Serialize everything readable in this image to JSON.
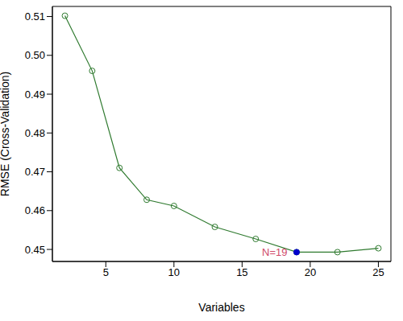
{
  "chart_data": {
    "type": "line",
    "xlabel": "Variables",
    "ylabel": "RMSE (Cross-Validation)",
    "x": [
      2,
      4,
      6,
      8,
      10,
      13,
      16,
      19,
      22,
      25
    ],
    "values": [
      0.5102,
      0.496,
      0.471,
      0.4628,
      0.4612,
      0.4558,
      0.4527,
      0.4493,
      0.4493,
      0.4503
    ],
    "color": "#2f7a2f",
    "marker": "circle",
    "xlim": [
      1.08,
      25.92
    ],
    "ylim": [
      0.4469,
      0.5126
    ],
    "xticks": [
      5,
      10,
      15,
      20,
      25
    ],
    "yticks": [
      0.45,
      0.46,
      0.47,
      0.48,
      0.49,
      {
        "value": 0.5,
        "label": "0.50"
      },
      0.51
    ],
    "annotations": [
      {
        "text": "N=19",
        "x": 19,
        "y": 0.4493,
        "color": "#d04a6a"
      }
    ]
  }
}
